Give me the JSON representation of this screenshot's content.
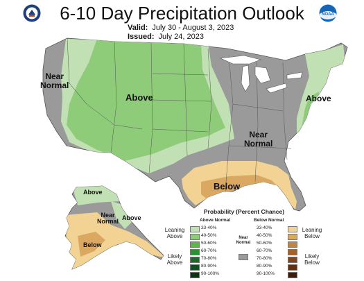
{
  "header": {
    "title": "6-10 Day Precipitation Outlook",
    "valid_label": "Valid:",
    "valid_value": "July 30 - August 3, 2023",
    "issued_label": "Issued:",
    "issued_value": "July 24, 2023",
    "logos": [
      "commerce-seal-icon",
      "noaa-logo-icon"
    ],
    "logo_text": "NOAA"
  },
  "map_labels": {
    "west": "Near\nNormal",
    "central": "Above",
    "east_coast": "Above",
    "southeast": "Near\nNormal",
    "gulf": "Below",
    "ak_north": "Above",
    "ak_middle": "Near\nNormal",
    "ak_east": "Above",
    "ak_south": "Below"
  },
  "legend": {
    "title": "Probability (Percent Chance)",
    "above_header": "Above Normal",
    "below_header": "Below Normal",
    "near_label": "Near\nNormal",
    "leaning_above": "Leaning\nAbove",
    "likely_above": "Likely\nAbove",
    "leaning_below": "Leaning\nBelow",
    "likely_below": "Likely\nBelow",
    "above_bins": [
      {
        "label": "33-40%",
        "color": "#c1e1b4"
      },
      {
        "label": "40-50%",
        "color": "#8fcc7a"
      },
      {
        "label": "50-60%",
        "color": "#5cb64a"
      },
      {
        "label": "60-70%",
        "color": "#2f9135"
      },
      {
        "label": "70-80%",
        "color": "#1e6a2b"
      },
      {
        "label": "80-90%",
        "color": "#144e20"
      },
      {
        "label": "90-100%",
        "color": "#0b3314"
      }
    ],
    "below_bins": [
      {
        "label": "33-40%",
        "color": "#f2d394"
      },
      {
        "label": "40-50%",
        "color": "#dba862"
      },
      {
        "label": "50-60%",
        "color": "#c2853f"
      },
      {
        "label": "60-70%",
        "color": "#a46228"
      },
      {
        "label": "70-80%",
        "color": "#82441a"
      },
      {
        "label": "80-90%",
        "color": "#632f12"
      },
      {
        "label": "90-100%",
        "color": "#3f1c0a"
      }
    ],
    "near_color": "#9a9a9a"
  },
  "colors": {
    "land_near": "#9a9a9a",
    "water": "#ffffff",
    "border": "#555555"
  }
}
